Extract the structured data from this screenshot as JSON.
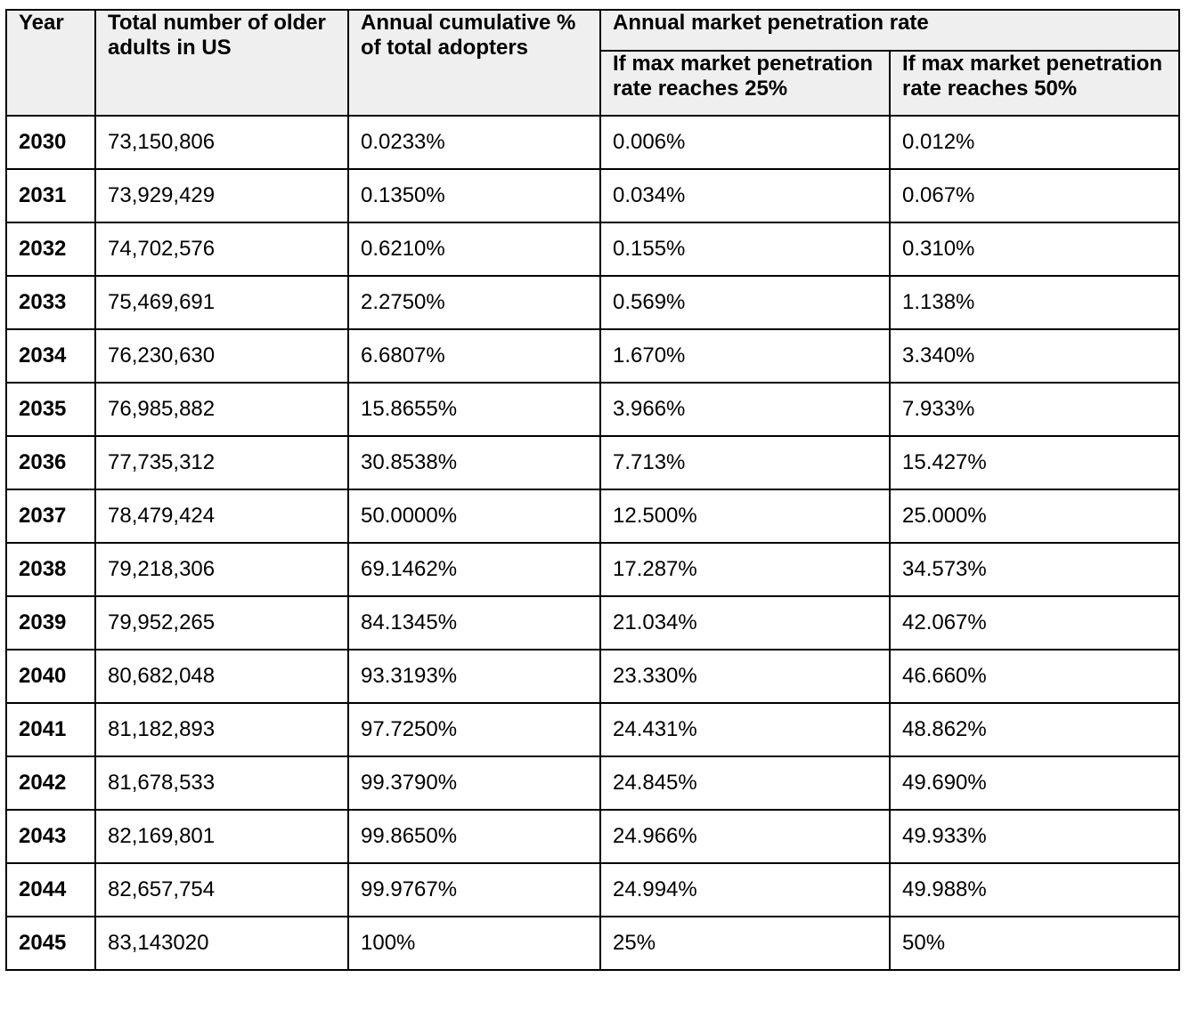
{
  "headers": {
    "year": "Year",
    "total": "Total number of older adults in US",
    "cumulative": "Annual cumulative % of total adopters",
    "penetration": "Annual market penetration rate",
    "sub25_prefix": "If max market penetration rate reaches ",
    "sub25_value": "25%",
    "sub50_prefix": "If max market penetration rate reaches ",
    "sub50_value": "50%"
  },
  "rows": [
    {
      "year": "2030",
      "total": "73,150,806",
      "cumulative": "0.0233%",
      "pen25": "0.006%",
      "pen50": "0.012%"
    },
    {
      "year": "2031",
      "total": "73,929,429",
      "cumulative": "0.1350%",
      "pen25": "0.034%",
      "pen50": "0.067%"
    },
    {
      "year": "2032",
      "total": "74,702,576",
      "cumulative": "0.6210%",
      "pen25": "0.155%",
      "pen50": "0.310%"
    },
    {
      "year": "2033",
      "total": "75,469,691",
      "cumulative": "2.2750%",
      "pen25": "0.569%",
      "pen50": "1.138%"
    },
    {
      "year": "2034",
      "total": "76,230,630",
      "cumulative": "6.6807%",
      "pen25": "1.670%",
      "pen50": "3.340%"
    },
    {
      "year": "2035",
      "total": "76,985,882",
      "cumulative": "15.8655%",
      "pen25": "3.966%",
      "pen50": "7.933%"
    },
    {
      "year": "2036",
      "total": "77,735,312",
      "cumulative": "30.8538%",
      "pen25": "7.713%",
      "pen50": "15.427%"
    },
    {
      "year": "2037",
      "total": "78,479,424",
      "cumulative": "50.0000%",
      "pen25": "12.500%",
      "pen50": "25.000%"
    },
    {
      "year": "2038",
      "total": "79,218,306",
      "cumulative": "69.1462%",
      "pen25": "17.287%",
      "pen50": "34.573%"
    },
    {
      "year": "2039",
      "total": "79,952,265",
      "cumulative": "84.1345%",
      "pen25": "21.034%",
      "pen50": "42.067%"
    },
    {
      "year": "2040",
      "total": "80,682,048",
      "cumulative": "93.3193%",
      "pen25": "23.330%",
      "pen50": "46.660%"
    },
    {
      "year": "2041",
      "total": "81,182,893",
      "cumulative": "97.7250%",
      "pen25": "24.431%",
      "pen50": "48.862%"
    },
    {
      "year": "2042",
      "total": "81,678,533",
      "cumulative": "99.3790%",
      "pen25": "24.845%",
      "pen50": "49.690%"
    },
    {
      "year": "2043",
      "total": "82,169,801",
      "cumulative": "99.8650%",
      "pen25": "24.966%",
      "pen50": "49.933%"
    },
    {
      "year": "2044",
      "total": "82,657,754",
      "cumulative": "99.9767%",
      "pen25": "24.994%",
      "pen50": "49.988%"
    },
    {
      "year": "2045",
      "total": "83,143020",
      "cumulative": "100%",
      "pen25": "25%",
      "pen50": "50%"
    }
  ]
}
